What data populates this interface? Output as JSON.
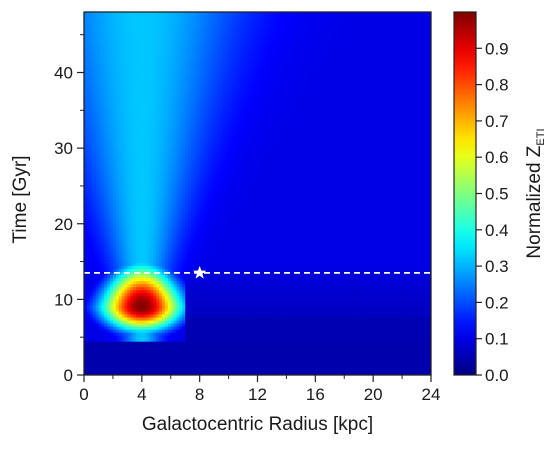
{
  "chart_data": {
    "type": "heatmap",
    "title": "",
    "xlabel": "Galactocentric Radius [kpc]",
    "ylabel": "Time [Gyr]",
    "xlim": [
      0,
      24
    ],
    "ylim": [
      0,
      48
    ],
    "x_ticks": [
      0,
      4,
      8,
      12,
      16,
      20,
      24
    ],
    "x_minor_ticks": [
      2,
      6,
      10,
      14,
      18,
      22
    ],
    "y_ticks": [
      0,
      10,
      20,
      30,
      40
    ],
    "y_minor_ticks": [
      5,
      15,
      25,
      35,
      45
    ],
    "colorbar": {
      "label_main": "Normalized Z",
      "label_sub": "ETI",
      "range": [
        0.0,
        1.0
      ],
      "ticks": [
        0.0,
        0.1,
        0.2,
        0.3,
        0.4,
        0.5,
        0.6,
        0.7,
        0.8,
        0.9
      ],
      "tick_labels": [
        "0.0",
        "0.1",
        "0.2",
        "0.3",
        "0.4",
        "0.5",
        "0.6",
        "0.7",
        "0.8",
        "0.9"
      ],
      "colormap": "jet"
    },
    "peak": {
      "x": 4,
      "y": 9,
      "value": 1.0
    },
    "annotations": {
      "present_day_line_y": 13.5,
      "star_marker": {
        "x": 8,
        "y": 13.5,
        "color": "#ffffff"
      }
    },
    "x_tick_labels": [
      "0",
      "4",
      "8",
      "12",
      "16",
      "20",
      "24"
    ],
    "y_tick_labels": [
      "0",
      "10",
      "20",
      "30",
      "40"
    ]
  }
}
